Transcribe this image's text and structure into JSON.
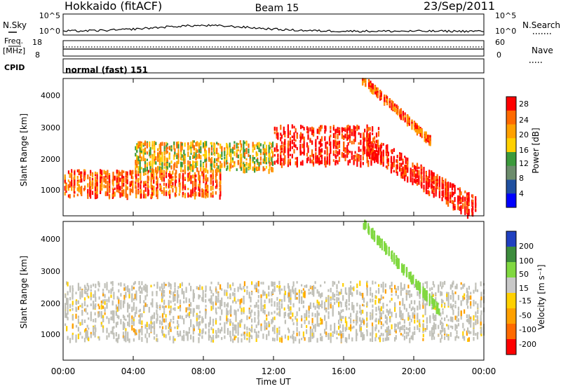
{
  "header": {
    "station": "Hokkaido (fitACF)",
    "beam": "Beam 15",
    "date": "23/Sep/2011"
  },
  "top_panels": {
    "nsky_label": "N.Sky",
    "nsearch_label": "N.Search",
    "nsky_ticks": [
      "10^5",
      "10^0"
    ],
    "nsearch_ticks": [
      "10^5",
      "10^0"
    ],
    "freq_label": "Freq.",
    "freq_unit": "[MHz]",
    "freq_ticks": [
      "18",
      "8"
    ],
    "nave_label": "Nave",
    "nave_ticks": [
      "60",
      "0"
    ],
    "cpid_label": "CPID",
    "cpid_value": "normal (fast) 151"
  },
  "chart_data": [
    {
      "type": "heatmap",
      "ylabel": "Slant Range [km]",
      "y_ticks": [
        "1000",
        "2000",
        "3000",
        "4000"
      ],
      "x_ticks": [
        "00:00",
        "04:00",
        "08:00",
        "12:00",
        "16:00",
        "20:00",
        "00:00"
      ],
      "xlim": [
        "00:00",
        "24:00"
      ],
      "ylim": [
        200,
        4500
      ],
      "colorbar": {
        "label": "Power [dB]",
        "ticks": [
          "28",
          "24",
          "20",
          "16",
          "12",
          "8",
          "4"
        ],
        "colors": [
          "#ff0000",
          "#ff6a00",
          "#ffa000",
          "#ffd000",
          "#3c9a3c",
          "#6c8c6c",
          "#2050a0",
          "#0000ff"
        ]
      },
      "features": [
        {
          "name": "low-range band",
          "hours": [
            0,
            9
          ],
          "range_km": [
            800,
            1600
          ],
          "level_db": 24
        },
        {
          "name": "mid band",
          "hours": [
            4,
            12
          ],
          "range_km": [
            1600,
            2500
          ],
          "level_db": 20
        },
        {
          "name": "main echo",
          "hours": [
            12,
            18
          ],
          "range_km": [
            1800,
            3000
          ],
          "level_db": 28
        },
        {
          "name": "descending streak",
          "hours": [
            17,
            23.5
          ],
          "range_km": [
            400,
            2500
          ],
          "level_db": 28
        },
        {
          "name": "upper streak",
          "hours": [
            17,
            21
          ],
          "range_km": [
            2500,
            4500
          ],
          "level_db": 24
        }
      ]
    },
    {
      "type": "heatmap",
      "ylabel": "Slant Range [km]",
      "xlabel": "Time UT",
      "y_ticks": [
        "1000",
        "2000",
        "3000",
        "4000"
      ],
      "x_ticks": [
        "00:00",
        "04:00",
        "08:00",
        "12:00",
        "16:00",
        "20:00",
        "00:00"
      ],
      "xlim": [
        "00:00",
        "24:00"
      ],
      "ylim": [
        200,
        4500
      ],
      "colorbar": {
        "label": "Velocity [m s⁻¹]",
        "ticks": [
          "200",
          "100",
          "50",
          "15",
          "-15",
          "-50",
          "-100",
          "-200"
        ],
        "colors": [
          "#2040c0",
          "#3c8c3c",
          "#80d840",
          "#c8c8c8",
          "#ffd000",
          "#ffa000",
          "#ff6a00",
          "#ff0000"
        ]
      },
      "ground_scatter_color": "#c0c0b8",
      "features": [
        {
          "name": "ground scatter band",
          "hours": [
            0,
            24
          ],
          "range_km": [
            800,
            2600
          ],
          "velocity": 0
        },
        {
          "name": "green streak",
          "hours": [
            17,
            21.5
          ],
          "range_km": [
            1700,
            4500
          ],
          "velocity": 40
        }
      ]
    }
  ]
}
